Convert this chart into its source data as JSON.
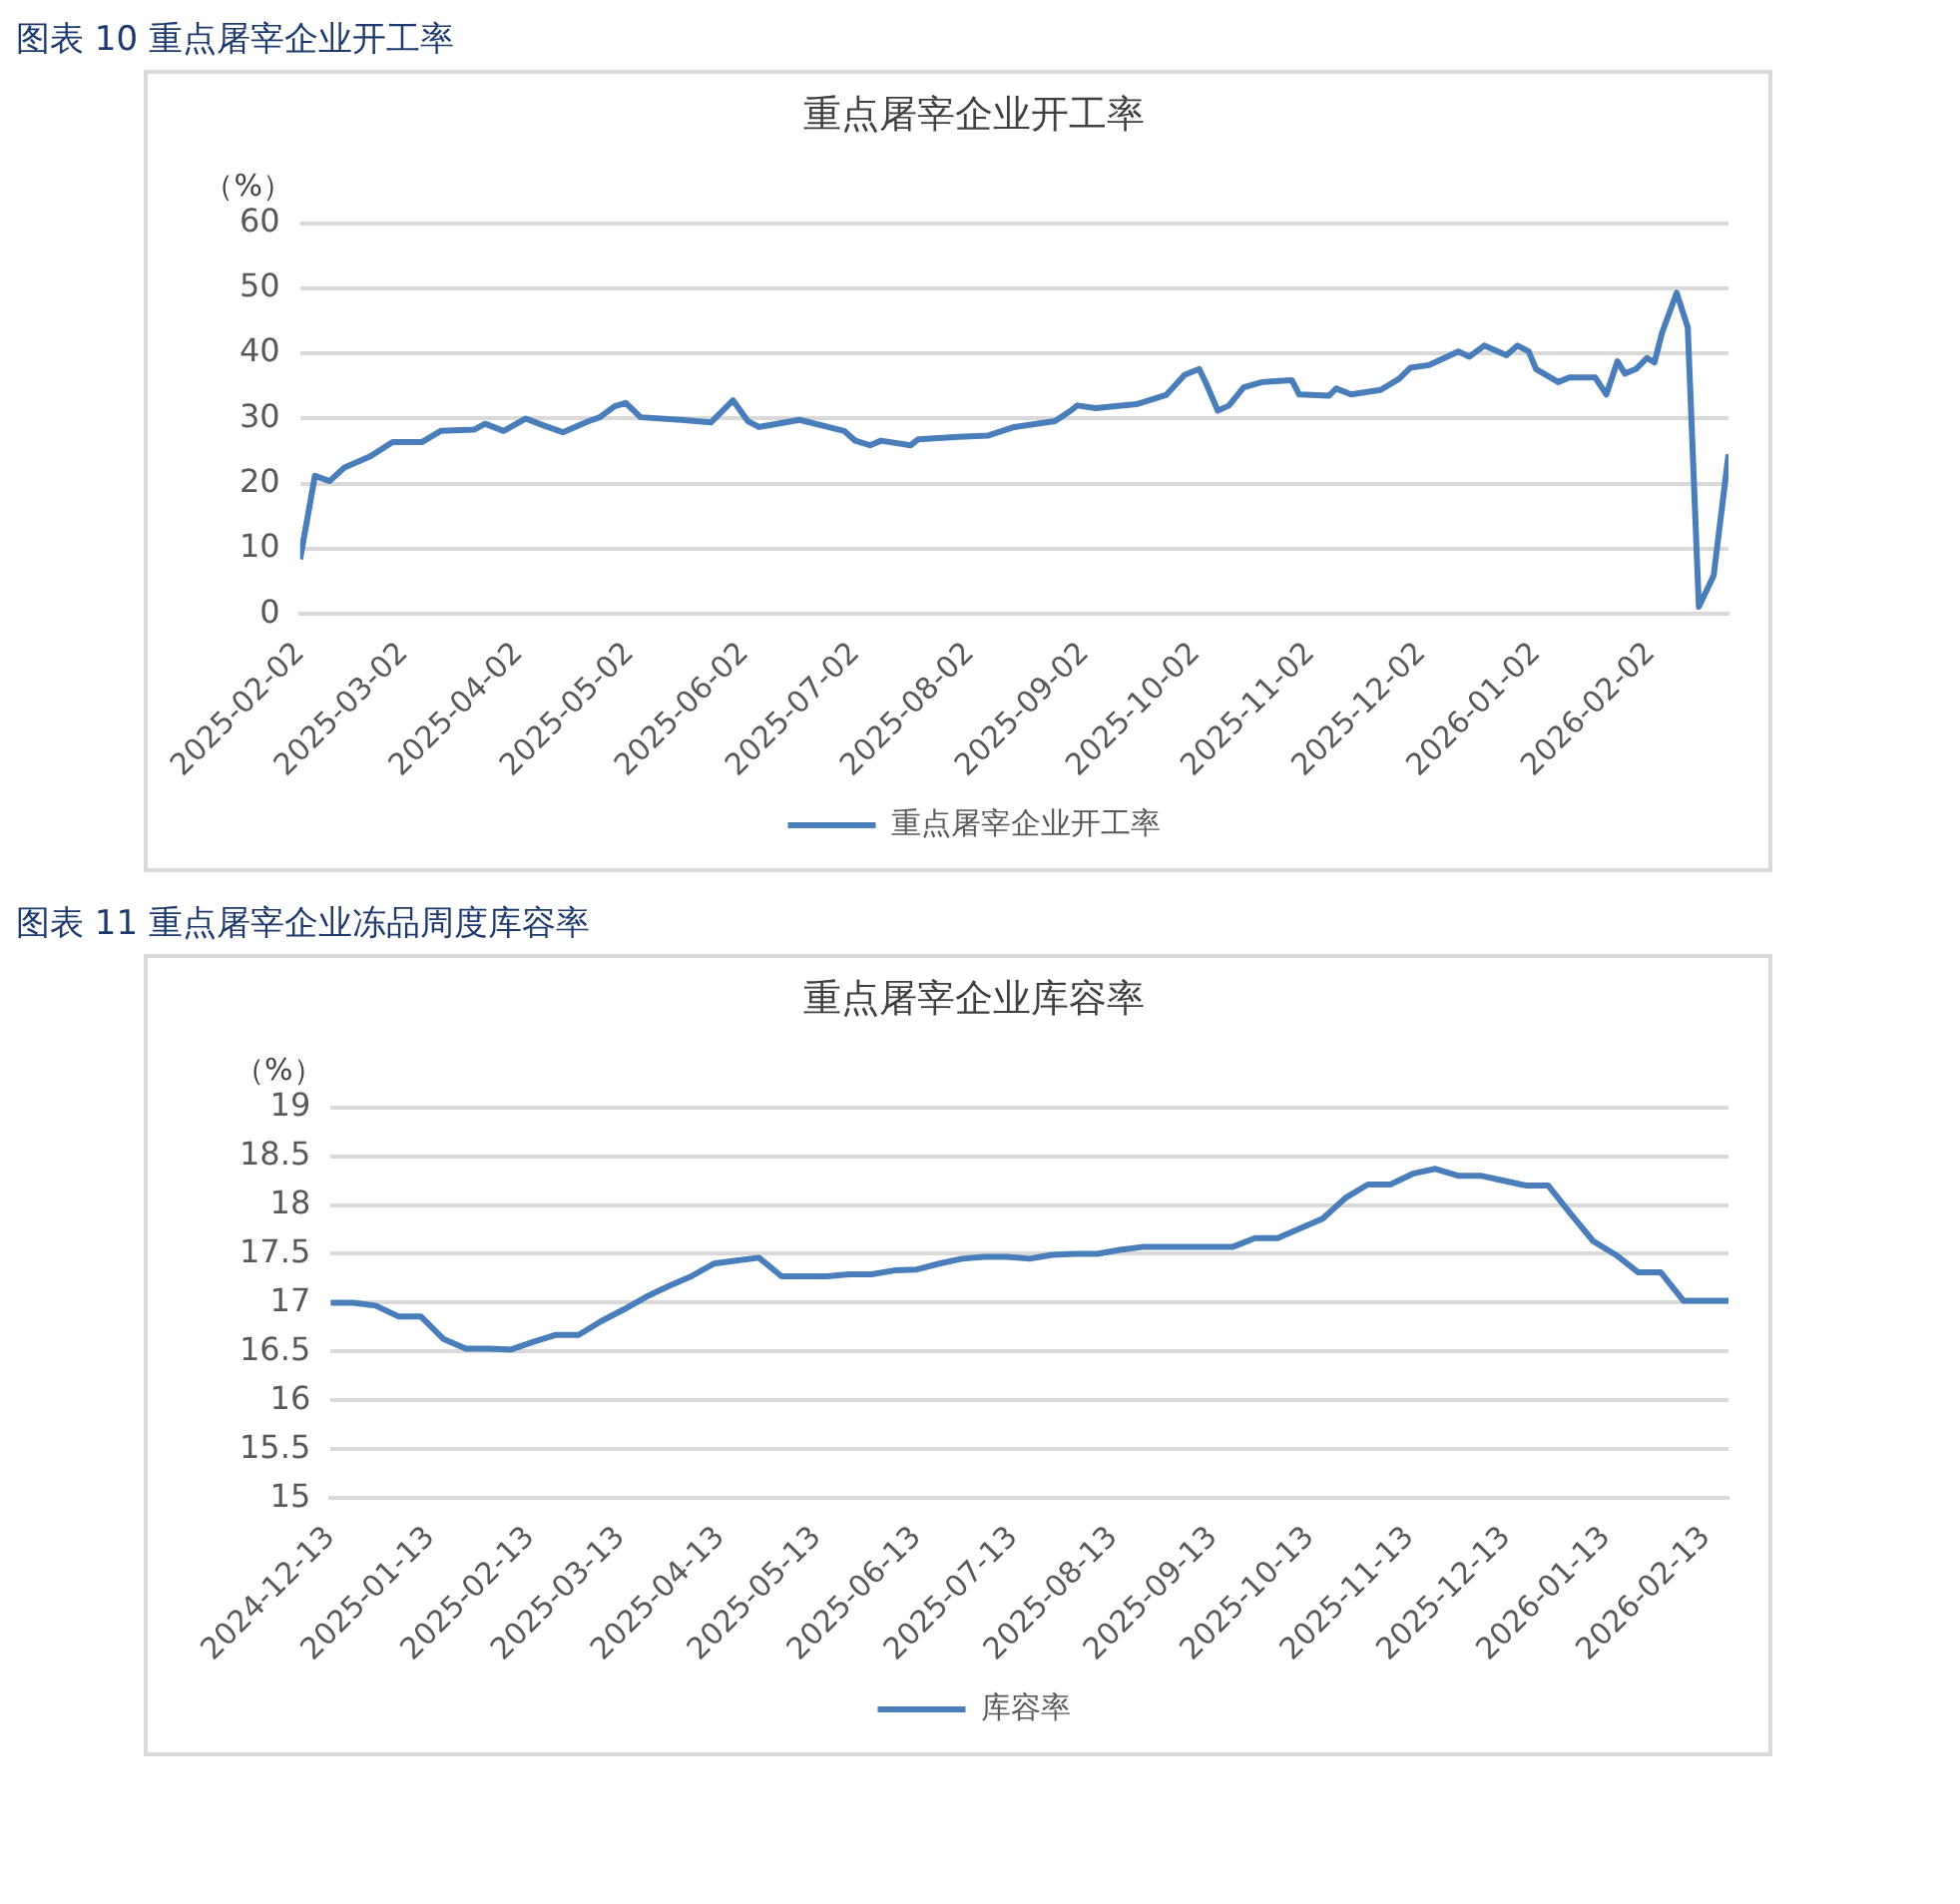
{
  "chart_data": [
    {
      "type": "line",
      "title": "图表 10  重点屠宰企业开工率",
      "subtitle": "重点屠宰企业开工率",
      "ylabel": "（%）",
      "xlim": [
        "2025-02-02",
        "2026-02-23"
      ],
      "xticks": [
        "2025-02-02",
        "2025-03-02",
        "2025-04-02",
        "2025-05-02",
        "2025-06-02",
        "2025-07-02",
        "2025-08-02",
        "2025-09-02",
        "2025-10-02",
        "2025-11-02",
        "2025-12-02",
        "2026-01-02",
        "2026-02-02"
      ],
      "ylim": [
        0,
        60
      ],
      "yticks": [
        0,
        10,
        20,
        30,
        40,
        50,
        60
      ],
      "grid": "y",
      "legend": "bottom",
      "marker": "none",
      "line_style": "solid",
      "series": [
        {
          "name": "重点屠宰企业开工率",
          "color": "#4a7ebb",
          "x": [
            "2025-02-02",
            "2025-02-06",
            "2025-02-10",
            "2025-02-14",
            "2025-02-21",
            "2025-02-27",
            "2025-03-07",
            "2025-03-12",
            "2025-03-21",
            "2025-03-24",
            "2025-03-29",
            "2025-04-04",
            "2025-04-09",
            "2025-04-14",
            "2025-04-21",
            "2025-04-24",
            "2025-04-28",
            "2025-05-01",
            "2025-05-05",
            "2025-05-16",
            "2025-05-24",
            "2025-05-30",
            "2025-06-03",
            "2025-06-06",
            "2025-06-17",
            "2025-06-29",
            "2025-07-02",
            "2025-07-06",
            "2025-07-09",
            "2025-07-17",
            "2025-07-19",
            "2025-07-30",
            "2025-08-07",
            "2025-08-14",
            "2025-08-25",
            "2025-08-29",
            "2025-08-31",
            "2025-09-05",
            "2025-09-16",
            "2025-09-24",
            "2025-09-29",
            "2025-10-03",
            "2025-10-05",
            "2025-10-08",
            "2025-10-11",
            "2025-10-15",
            "2025-10-20",
            "2025-10-28",
            "2025-10-30",
            "2025-11-07",
            "2025-11-09",
            "2025-11-13",
            "2025-11-21",
            "2025-11-26",
            "2025-11-29",
            "2025-12-04",
            "2025-12-12",
            "2025-12-15",
            "2025-12-19",
            "2025-12-25",
            "2025-12-28",
            "2025-12-31",
            "2026-01-02",
            "2026-01-08",
            "2026-01-11",
            "2026-01-18",
            "2026-01-21",
            "2026-01-24",
            "2026-01-26",
            "2026-01-29",
            "2026-02-01",
            "2026-02-03",
            "2026-02-05",
            "2026-02-09",
            "2026-02-12",
            "2026-02-15",
            "2026-02-19",
            "2026-02-23"
          ],
          "values": [
            8.4,
            21.2,
            20.4,
            22.5,
            24.2,
            26.4,
            26.4,
            28.1,
            28.3,
            29.2,
            28.1,
            30.0,
            28.9,
            27.9,
            29.6,
            30.2,
            31.9,
            32.4,
            30.2,
            29.8,
            29.4,
            32.8,
            29.6,
            28.7,
            29.8,
            28.1,
            26.6,
            25.9,
            26.6,
            25.9,
            26.8,
            27.2,
            27.4,
            28.7,
            29.6,
            31.1,
            32.0,
            31.6,
            32.2,
            33.6,
            36.7,
            37.6,
            35.2,
            31.2,
            32.0,
            34.8,
            35.6,
            35.9,
            33.7,
            33.5,
            34.6,
            33.7,
            34.4,
            36.1,
            37.8,
            38.2,
            40.3,
            39.5,
            41.2,
            39.7,
            41.2,
            40.3,
            37.6,
            35.6,
            36.3,
            36.3,
            33.7,
            38.8,
            36.9,
            37.6,
            39.3,
            38.6,
            43.1,
            49.3,
            44.0,
            1.1,
            5.9,
            24.5
          ]
        }
      ]
    },
    {
      "type": "line",
      "title": "图表 11  重点屠宰企业冻品周度库容率",
      "subtitle": "重点屠宰企业库容率",
      "ylabel": "（%）",
      "xlim": [
        "2024-12-13",
        "2026-02-20"
      ],
      "xticks": [
        "2024-12-13",
        "2025-01-13",
        "2025-02-13",
        "2025-03-13",
        "2025-04-13",
        "2025-05-13",
        "2025-06-13",
        "2025-07-13",
        "2025-08-13",
        "2025-09-13",
        "2025-10-13",
        "2025-11-13",
        "2025-12-13",
        "2026-01-13",
        "2026-02-13"
      ],
      "ylim": [
        15,
        19
      ],
      "yticks": [
        15,
        15.5,
        16,
        16.5,
        17,
        17.5,
        18,
        18.5,
        19
      ],
      "grid": "y",
      "legend": "bottom",
      "marker": "none",
      "line_style": "solid",
      "series": [
        {
          "name": "库容率",
          "color": "#4a7ebb",
          "x": [
            "2024-12-13",
            "2024-12-20",
            "2024-12-27",
            "2025-01-03",
            "2025-01-10",
            "2025-01-17",
            "2025-01-24",
            "2025-01-31",
            "2025-02-07",
            "2025-02-14",
            "2025-02-21",
            "2025-02-28",
            "2025-03-07",
            "2025-03-14",
            "2025-03-21",
            "2025-03-28",
            "2025-04-04",
            "2025-04-11",
            "2025-04-18",
            "2025-04-25",
            "2025-05-02",
            "2025-05-09",
            "2025-05-16",
            "2025-05-23",
            "2025-05-30",
            "2025-06-06",
            "2025-06-13",
            "2025-06-20",
            "2025-06-27",
            "2025-07-04",
            "2025-07-11",
            "2025-07-18",
            "2025-07-25",
            "2025-08-01",
            "2025-08-08",
            "2025-08-15",
            "2025-08-22",
            "2025-08-29",
            "2025-09-05",
            "2025-09-12",
            "2025-09-19",
            "2025-09-26",
            "2025-10-03",
            "2025-10-10",
            "2025-10-17",
            "2025-10-24",
            "2025-10-31",
            "2025-11-07",
            "2025-11-14",
            "2025-11-21",
            "2025-11-28",
            "2025-12-05",
            "2025-12-12",
            "2025-12-19",
            "2025-12-26",
            "2026-01-02",
            "2026-01-09",
            "2026-01-16",
            "2026-01-23",
            "2026-01-30",
            "2026-02-06",
            "2026-02-13",
            "2026-02-20"
          ],
          "values": [
            17.0,
            17.0,
            16.97,
            16.86,
            16.86,
            16.63,
            16.53,
            16.53,
            16.52,
            16.6,
            16.67,
            16.67,
            16.81,
            16.93,
            17.06,
            17.17,
            17.27,
            17.4,
            17.43,
            17.46,
            17.27,
            17.27,
            17.27,
            17.29,
            17.29,
            17.33,
            17.34,
            17.4,
            17.45,
            17.47,
            17.47,
            17.45,
            17.49,
            17.5,
            17.5,
            17.54,
            17.57,
            17.57,
            17.57,
            17.57,
            17.57,
            17.66,
            17.66,
            17.76,
            17.86,
            18.07,
            18.21,
            18.21,
            18.32,
            18.37,
            18.3,
            18.3,
            18.25,
            18.2,
            18.2,
            17.91,
            17.63,
            17.49,
            17.31,
            17.31,
            17.02,
            17.02,
            17.02
          ]
        }
      ]
    }
  ]
}
